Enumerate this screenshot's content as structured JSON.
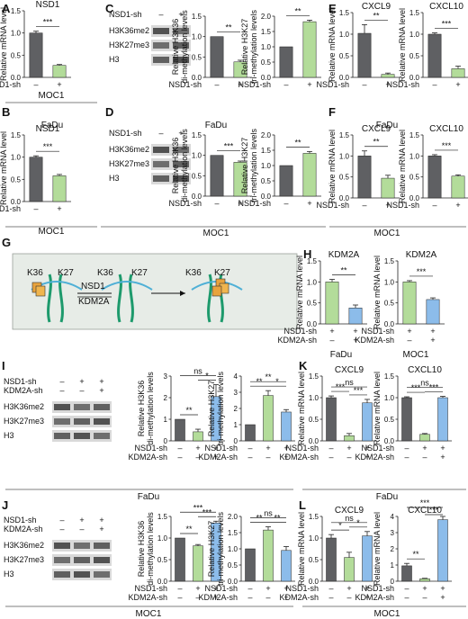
{
  "colors": {
    "gray": "#5f6063",
    "green": "#b3dc9a",
    "blue": "#8cbcea",
    "axis": "#222222",
    "panel_bg": "#e7ece7"
  },
  "schematic": {
    "labels": [
      "K36",
      "K27",
      "K36",
      "K27",
      "K36",
      "K27"
    ],
    "enzyme_top": "NSD1",
    "enzyme_bottom": "KDM2A"
  },
  "blots": [
    {
      "panel": "C",
      "rows": [
        "NSD1-sh",
        "H3K36me2",
        "H3K27me3",
        "H3"
      ],
      "signs": [
        "–",
        "+"
      ]
    },
    {
      "panel": "D",
      "rows": [
        "NSD1-sh",
        "H3K36me2",
        "H3K27me3",
        "H3"
      ],
      "signs": [
        "–",
        "+"
      ]
    },
    {
      "panel": "I",
      "rows": [
        "NSD1-sh",
        "KDM2A-sh",
        "H3K36me2",
        "H3K27me3",
        "H3"
      ],
      "signs": [
        [
          "–",
          "+",
          "+"
        ],
        [
          "–",
          "–",
          "+"
        ]
      ]
    },
    {
      "panel": "J",
      "rows": [
        "NSD1-sh",
        "KDM2A-sh",
        "H3K36me2",
        "H3K27me3",
        "H3"
      ],
      "signs": [
        [
          "–",
          "+",
          "+"
        ],
        [
          "–",
          "–",
          "+"
        ]
      ]
    }
  ],
  "footers": {
    "A": "MOC1",
    "CD": "MOC1",
    "EF": "MOC1",
    "H1": "FaDu",
    "H2": "MOC1",
    "I": "FaDu",
    "K": "FaDu",
    "J": "MOC1",
    "L": "MOC1",
    "B": "FaDu",
    "D": "FaDu",
    "F": "FaDu"
  },
  "chart_data": [
    {
      "id": "A1",
      "panel": "A",
      "type": "bar",
      "title": "NSD1",
      "ylabel": "Relative mRNA level",
      "ylim": [
        0,
        1.5
      ],
      "yticks": [
        0.0,
        0.5,
        1.0,
        1.5
      ],
      "ytick_labels": [
        "0.0",
        "0.5",
        "1.0",
        "1.5"
      ],
      "rows": [
        [
          "NSD1-sh",
          [
            "–",
            "+"
          ]
        ]
      ],
      "values": [
        1.0,
        0.27
      ],
      "errors": [
        0.04,
        0.02
      ],
      "colors": [
        "gray",
        "green"
      ],
      "sig": [
        {
          "a": 0,
          "b": 1,
          "label": "***"
        }
      ]
    },
    {
      "id": "B1",
      "panel": "B",
      "type": "bar",
      "title": "NSD1",
      "ylabel": "Relative mRNA level",
      "ylim": [
        0,
        1.5
      ],
      "yticks": [
        0.0,
        0.5,
        1.0,
        1.5
      ],
      "ytick_labels": [
        "0.0",
        "0.5",
        "1.0",
        "1.5"
      ],
      "rows": [
        [
          "NSD1-sh",
          [
            "–",
            "+"
          ]
        ]
      ],
      "values": [
        1.0,
        0.58
      ],
      "errors": [
        0.03,
        0.03
      ],
      "colors": [
        "gray",
        "green"
      ],
      "sig": [
        {
          "a": 0,
          "b": 1,
          "label": "***"
        }
      ]
    },
    {
      "id": "C1",
      "panel": "C",
      "type": "bar",
      "title": "",
      "ylabel": "Relative H3K36 di-methylation levels",
      "ylim": [
        0,
        1.5
      ],
      "yticks": [
        0.0,
        0.5,
        1.0,
        1.5
      ],
      "ytick_labels": [
        "0.0",
        "0.5",
        "1.0",
        "1.5"
      ],
      "rows": [
        [
          "NSD1-sh",
          [
            "–",
            "+"
          ]
        ]
      ],
      "values": [
        1.0,
        0.38
      ],
      "errors": [
        0.0,
        0.04
      ],
      "colors": [
        "gray",
        "green"
      ],
      "sig": [
        {
          "a": 0,
          "b": 1,
          "label": "**"
        }
      ]
    },
    {
      "id": "C2",
      "panel": "C",
      "type": "bar",
      "title": "",
      "ylabel": "Relative H3K27 tri-methylation levels",
      "ylim": [
        0,
        2.0
      ],
      "yticks": [
        0.0,
        0.5,
        1.0,
        1.5,
        2.0
      ],
      "ytick_labels": [
        "0.0",
        "0.5",
        "1.0",
        "1.5",
        "2.0"
      ],
      "rows": [
        [
          "NSD1-sh",
          [
            "–",
            "+"
          ]
        ]
      ],
      "values": [
        1.0,
        1.82
      ],
      "errors": [
        0.0,
        0.05
      ],
      "colors": [
        "gray",
        "green"
      ],
      "sig": [
        {
          "a": 0,
          "b": 1,
          "label": "**"
        }
      ]
    },
    {
      "id": "D1",
      "panel": "D",
      "type": "bar",
      "title": "",
      "ylabel": "Relative H3K36 di-methylation levels",
      "ylim": [
        0,
        1.5
      ],
      "yticks": [
        0.0,
        0.5,
        1.0,
        1.5
      ],
      "ytick_labels": [
        "0.0",
        "0.5",
        "1.0",
        "1.5"
      ],
      "rows": [
        [
          "NSD1-sh",
          [
            "–",
            "+"
          ]
        ]
      ],
      "values": [
        1.0,
        0.83
      ],
      "errors": [
        0.0,
        0.03
      ],
      "colors": [
        "gray",
        "green"
      ],
      "sig": [
        {
          "a": 0,
          "b": 1,
          "label": "***"
        }
      ]
    },
    {
      "id": "D2",
      "panel": "D",
      "type": "bar",
      "title": "",
      "ylabel": "Relative H3K27 tri-methylation levels",
      "ylim": [
        0,
        2.0
      ],
      "yticks": [
        0.0,
        0.5,
        1.0,
        1.5,
        2.0
      ],
      "ytick_labels": [
        "0.0",
        "0.5",
        "1.0",
        "1.5",
        "2.0"
      ],
      "rows": [
        [
          "NSD1-sh",
          [
            "–",
            "+"
          ]
        ]
      ],
      "values": [
        1.0,
        1.4
      ],
      "errors": [
        0.0,
        0.06
      ],
      "colors": [
        "gray",
        "green"
      ],
      "sig": [
        {
          "a": 0,
          "b": 1,
          "label": "**"
        }
      ]
    },
    {
      "id": "E1",
      "panel": "E",
      "type": "bar",
      "title": "CXCL9",
      "ylabel": "Relative mRNA level",
      "ylim": [
        0,
        1.5
      ],
      "yticks": [
        0.0,
        0.5,
        1.0,
        1.5
      ],
      "ytick_labels": [
        "0.0",
        "0.5",
        "1.0",
        "1.5"
      ],
      "rows": [
        [
          "NSD1-sh",
          [
            "–",
            "+"
          ]
        ]
      ],
      "values": [
        1.02,
        0.07
      ],
      "errors": [
        0.2,
        0.03
      ],
      "colors": [
        "gray",
        "green"
      ],
      "sig": [
        {
          "a": 0,
          "b": 1,
          "label": "**"
        }
      ]
    },
    {
      "id": "E2",
      "panel": "E",
      "type": "bar",
      "title": "CXCL10",
      "ylabel": "Relative mRNA level",
      "ylim": [
        0,
        1.5
      ],
      "yticks": [
        0.0,
        0.5,
        1.0,
        1.5
      ],
      "ytick_labels": [
        "0.0",
        "0.5",
        "1.0",
        "1.5"
      ],
      "rows": [
        [
          "NSD1-sh",
          [
            "–",
            "+"
          ]
        ]
      ],
      "values": [
        1.0,
        0.2
      ],
      "errors": [
        0.03,
        0.06
      ],
      "colors": [
        "gray",
        "green"
      ],
      "sig": [
        {
          "a": 0,
          "b": 1,
          "label": "***"
        }
      ]
    },
    {
      "id": "F1",
      "panel": "F",
      "type": "bar",
      "title": "CXCL9",
      "ylabel": "Relative mRNA level",
      "ylim": [
        0,
        1.5
      ],
      "yticks": [
        0.0,
        0.5,
        1.0,
        1.5
      ],
      "ytick_labels": [
        "0.0",
        "0.5",
        "1.0",
        "1.5"
      ],
      "rows": [
        [
          "NSD1-sh",
          [
            "–",
            "+"
          ]
        ]
      ],
      "values": [
        1.0,
        0.47
      ],
      "errors": [
        0.12,
        0.07
      ],
      "colors": [
        "gray",
        "green"
      ],
      "sig": [
        {
          "a": 0,
          "b": 1,
          "label": "**"
        }
      ]
    },
    {
      "id": "F2",
      "panel": "F",
      "type": "bar",
      "title": "CXCL10",
      "ylabel": "Relative mRNA level",
      "ylim": [
        0,
        1.5
      ],
      "yticks": [
        0.0,
        0.5,
        1.0,
        1.5
      ],
      "ytick_labels": [
        "0.0",
        "0.5",
        "1.0",
        "1.5"
      ],
      "rows": [
        [
          "NSD1-sh",
          [
            "–",
            "+"
          ]
        ]
      ],
      "values": [
        1.0,
        0.52
      ],
      "errors": [
        0.03,
        0.03
      ],
      "colors": [
        "gray",
        "green"
      ],
      "sig": [
        {
          "a": 0,
          "b": 1,
          "label": "***"
        }
      ]
    },
    {
      "id": "H1",
      "panel": "H",
      "type": "bar",
      "title": "KDM2A",
      "ylabel": "Relative mRNA level",
      "ylim": [
        0,
        1.5
      ],
      "yticks": [
        0.0,
        0.5,
        1.0,
        1.5
      ],
      "ytick_labels": [
        "0.0",
        "0.5",
        "1.0",
        "1.5"
      ],
      "rows": [
        [
          "NSD1-sh",
          [
            "+",
            "+"
          ]
        ],
        [
          "KDM2A-sh",
          [
            "–",
            "+"
          ]
        ]
      ],
      "values": [
        1.0,
        0.38
      ],
      "errors": [
        0.06,
        0.07
      ],
      "colors": [
        "green",
        "blue"
      ],
      "sig": [
        {
          "a": 0,
          "b": 1,
          "label": "**"
        }
      ]
    },
    {
      "id": "H2",
      "panel": "H",
      "type": "bar",
      "title": "KDM2A",
      "ylabel": "Relative mRNA level",
      "ylim": [
        0,
        1.5
      ],
      "yticks": [
        0.0,
        0.5,
        1.0,
        1.5
      ],
      "ytick_labels": [
        "0.0",
        "0.5",
        "1.0",
        "1.5"
      ],
      "rows": [
        [
          "NSD1-sh",
          [
            "+",
            "+"
          ]
        ],
        [
          "KDM2A-sh",
          [
            "–",
            "+"
          ]
        ]
      ],
      "values": [
        1.0,
        0.58
      ],
      "errors": [
        0.03,
        0.04
      ],
      "colors": [
        "green",
        "blue"
      ],
      "sig": [
        {
          "a": 0,
          "b": 1,
          "label": "***"
        }
      ]
    },
    {
      "id": "I1",
      "panel": "I",
      "type": "bar",
      "title": "",
      "ylabel": "Relative H3K36 di-methylation levels",
      "ylim": [
        0,
        3.0
      ],
      "yticks": [
        0,
        1,
        2,
        3
      ],
      "ytick_labels": [
        "0",
        "1",
        "2",
        "3"
      ],
      "rows": [
        [
          "NSD1-sh",
          [
            "–",
            "+",
            "+"
          ]
        ],
        [
          "KDM2A-sh",
          [
            "–",
            "–",
            "+"
          ]
        ]
      ],
      "values": [
        1.0,
        0.42,
        2.05
      ],
      "errors": [
        0.0,
        0.12,
        0.55
      ],
      "colors": [
        "gray",
        "green",
        "blue"
      ],
      "sig": [
        {
          "a": 0,
          "b": 1,
          "label": "**"
        },
        {
          "a": 1,
          "b": 2,
          "label": "*"
        },
        {
          "a": 0,
          "b": 2,
          "label": "ns"
        }
      ]
    },
    {
      "id": "I2",
      "panel": "I",
      "type": "bar",
      "title": "",
      "ylabel": "Relative H3K27 tri-methylation levels",
      "ylim": [
        0,
        4.0
      ],
      "yticks": [
        0,
        1,
        2,
        3,
        4
      ],
      "ytick_labels": [
        "0",
        "1",
        "2",
        "3",
        "4"
      ],
      "rows": [
        [
          "NSD1-sh",
          [
            "–",
            "+",
            "+"
          ]
        ],
        [
          "KDM2A-sh",
          [
            "–",
            "–",
            "+"
          ]
        ]
      ],
      "values": [
        1.0,
        2.8,
        1.78
      ],
      "errors": [
        0.0,
        0.3,
        0.15
      ],
      "colors": [
        "gray",
        "green",
        "blue"
      ],
      "sig": [
        {
          "a": 0,
          "b": 1,
          "label": "**"
        },
        {
          "a": 1,
          "b": 2,
          "label": "*"
        },
        {
          "a": 0,
          "b": 2,
          "label": "**"
        }
      ]
    },
    {
      "id": "J1",
      "panel": "J",
      "type": "bar",
      "title": "",
      "ylabel": "Relative H3K36 di-methylation levels",
      "ylim": [
        0,
        1.5
      ],
      "yticks": [
        0.0,
        0.5,
        1.0,
        1.5
      ],
      "ytick_labels": [
        "0.0",
        "0.5",
        "1.0",
        "1.5"
      ],
      "rows": [
        [
          "NSD1-sh",
          [
            "–",
            "+",
            "+"
          ]
        ],
        [
          "KDM2A-sh",
          [
            "–",
            "–",
            "+"
          ]
        ]
      ],
      "values": [
        1.0,
        0.82,
        1.35
      ],
      "errors": [
        0.0,
        0.03,
        0.04
      ],
      "colors": [
        "gray",
        "green",
        "blue"
      ],
      "sig": [
        {
          "a": 0,
          "b": 1,
          "label": "**"
        },
        {
          "a": 1,
          "b": 2,
          "label": "***"
        },
        {
          "a": 0,
          "b": 2,
          "label": "***"
        }
      ]
    },
    {
      "id": "J2",
      "panel": "J",
      "type": "bar",
      "title": "",
      "ylabel": "Relative H3K27 tri-methylation levels",
      "ylim": [
        0,
        2.0
      ],
      "yticks": [
        0.0,
        0.5,
        1.0,
        1.5,
        2.0
      ],
      "ytick_labels": [
        "0.0",
        "0.5",
        "1.0",
        "1.5",
        "2.0"
      ],
      "rows": [
        [
          "NSD1-sh",
          [
            "–",
            "+",
            "+"
          ]
        ],
        [
          "KDM2A-sh",
          [
            "–",
            "–",
            "+"
          ]
        ]
      ],
      "values": [
        1.0,
        1.58,
        0.95
      ],
      "errors": [
        0.0,
        0.1,
        0.12
      ],
      "colors": [
        "gray",
        "green",
        "blue"
      ],
      "sig": [
        {
          "a": 0,
          "b": 1,
          "label": "**"
        },
        {
          "a": 1,
          "b": 2,
          "label": "**"
        },
        {
          "a": 0,
          "b": 2,
          "label": "ns"
        }
      ]
    },
    {
      "id": "K1",
      "panel": "K",
      "type": "bar",
      "title": "CXCL9",
      "ylabel": "Relative mRNA level",
      "ylim": [
        0,
        1.5
      ],
      "yticks": [
        0.0,
        0.5,
        1.0,
        1.5
      ],
      "ytick_labels": [
        "0.0",
        "0.5",
        "1.0",
        "1.5"
      ],
      "rows": [
        [
          "NSD1-sh",
          [
            "–",
            "+",
            "+"
          ]
        ],
        [
          "KDM2A-sh",
          [
            "–",
            "–",
            "+"
          ]
        ]
      ],
      "values": [
        1.0,
        0.12,
        0.88
      ],
      "errors": [
        0.04,
        0.05,
        0.08
      ],
      "colors": [
        "gray",
        "green",
        "blue"
      ],
      "sig": [
        {
          "a": 0,
          "b": 1,
          "label": "***"
        },
        {
          "a": 1,
          "b": 2,
          "label": "***"
        },
        {
          "a": 0,
          "b": 2,
          "label": "ns"
        }
      ]
    },
    {
      "id": "K2",
      "panel": "K",
      "type": "bar",
      "title": "CXCL10",
      "ylabel": "Relative mRNA level",
      "ylim": [
        0,
        1.5
      ],
      "yticks": [
        0.0,
        0.5,
        1.0,
        1.5
      ],
      "ytick_labels": [
        "0.0",
        "0.5",
        "1.0",
        "1.5"
      ],
      "rows": [
        [
          "NSD1-sh",
          [
            "–",
            "+",
            "+"
          ]
        ],
        [
          "KDM2A-sh",
          [
            "–",
            "–",
            "+"
          ]
        ]
      ],
      "values": [
        1.0,
        0.15,
        1.0
      ],
      "errors": [
        0.02,
        0.02,
        0.03
      ],
      "colors": [
        "gray",
        "green",
        "blue"
      ],
      "sig": [
        {
          "a": 0,
          "b": 1,
          "label": "***"
        },
        {
          "a": 1,
          "b": 2,
          "label": "***"
        },
        {
          "a": 0,
          "b": 2,
          "label": "ns"
        }
      ]
    },
    {
      "id": "L1",
      "panel": "L",
      "type": "bar",
      "title": "CXCL9",
      "ylabel": "Relative mRNA level",
      "ylim": [
        0,
        1.5
      ],
      "yticks": [
        0.0,
        0.5,
        1.0,
        1.5
      ],
      "ytick_labels": [
        "0.0",
        "0.5",
        "1.0",
        "1.5"
      ],
      "rows": [
        [
          "NSD1-sh",
          [
            "–",
            "+",
            "+"
          ]
        ],
        [
          "KDM2A-sh",
          [
            "–",
            "–",
            "+"
          ]
        ]
      ],
      "values": [
        1.0,
        0.55,
        1.05
      ],
      "errors": [
        0.08,
        0.12,
        0.1
      ],
      "colors": [
        "gray",
        "green",
        "blue"
      ],
      "sig": [
        {
          "a": 0,
          "b": 1,
          "label": "*"
        },
        {
          "a": 1,
          "b": 2,
          "label": "*"
        },
        {
          "a": 0,
          "b": 2,
          "label": "ns"
        }
      ]
    },
    {
      "id": "L2",
      "panel": "L",
      "type": "bar",
      "title": "CXCL10",
      "ylabel": "Relative mRNA level",
      "ylim": [
        0,
        4.0
      ],
      "yticks": [
        0,
        1,
        2,
        3,
        4
      ],
      "ytick_labels": [
        "0",
        "1",
        "2",
        "3",
        "4"
      ],
      "rows": [
        [
          "NSD1-sh",
          [
            "–",
            "+",
            "+"
          ]
        ],
        [
          "KDM2A-sh",
          [
            "–",
            "–",
            "+"
          ]
        ]
      ],
      "values": [
        0.95,
        0.15,
        3.8
      ],
      "errors": [
        0.15,
        0.03,
        0.2
      ],
      "colors": [
        "gray",
        "green",
        "blue"
      ],
      "sig": [
        {
          "a": 0,
          "b": 1,
          "label": "**"
        },
        {
          "a": 1,
          "b": 2,
          "label": "***"
        },
        {
          "a": 0,
          "b": 2,
          "label": "***"
        }
      ]
    }
  ]
}
